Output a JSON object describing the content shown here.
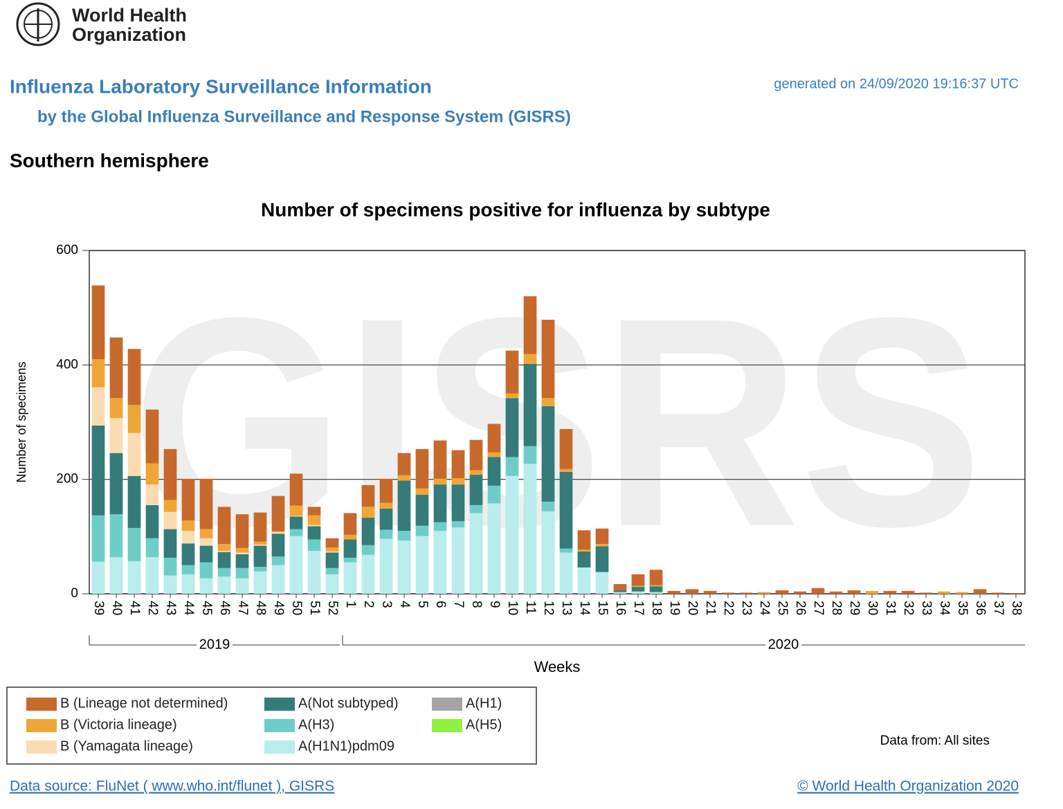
{
  "page": {
    "logo_line1": "World Health",
    "logo_line2": "Organization",
    "heading": "Influenza Laboratory Surveillance Information",
    "subheading": "by the Global Influenza Surveillance and Response System (GISRS)",
    "generated": "generated on 24/09/2020 19:16:37 UTC",
    "region": "Southern hemisphere",
    "data_from": "Data from: All sites",
    "source": "Data source: FluNet ( www.who.int/flunet ), GISRS",
    "copyright": "© World Health Organization 2020"
  },
  "chart_data": {
    "type": "stacked-bar",
    "title": "Number of specimens positive for influenza by subtype",
    "watermark": "GISRS",
    "x_label": "Weeks",
    "y_label": "Number of specimens",
    "categories": [
      "39",
      "40",
      "41",
      "42",
      "43",
      "44",
      "45",
      "46",
      "47",
      "48",
      "49",
      "50",
      "51",
      "52",
      "1",
      "2",
      "3",
      "4",
      "5",
      "6",
      "7",
      "8",
      "9",
      "10",
      "11",
      "12",
      "13",
      "14",
      "15",
      "16",
      "17",
      "18",
      "19",
      "20",
      "21",
      "22",
      "23",
      "24",
      "25",
      "26",
      "27",
      "28",
      "29",
      "30",
      "31",
      "32",
      "33",
      "34",
      "35",
      "36",
      "37",
      "38"
    ],
    "years": [
      "2019",
      "2020"
    ],
    "ylim": [
      0,
      600
    ],
    "yticks": [
      0,
      200,
      400,
      600
    ],
    "grid": true,
    "series": [
      {
        "name": "A(H1N1)pdm09",
        "color": "#b8eced",
        "values": [
          56,
          64,
          57,
          64,
          32,
          34,
          27,
          30,
          27,
          39,
          50,
          101,
          75,
          34,
          55,
          68,
          96,
          93,
          101,
          110,
          116,
          141,
          158,
          206,
          227,
          144,
          72,
          46,
          38,
          3,
          4,
          3,
          0,
          0,
          0,
          0,
          0,
          0,
          0,
          0,
          0,
          0,
          0,
          0,
          0,
          0,
          0,
          0,
          0,
          0,
          0,
          0
        ]
      },
      {
        "name": "A(H3)",
        "color": "#6fcdc9",
        "values": [
          81,
          75,
          58,
          33,
          31,
          16,
          28,
          15,
          18,
          8,
          15,
          12,
          20,
          11,
          8,
          17,
          16,
          17,
          18,
          15,
          11,
          14,
          31,
          33,
          31,
          17,
          7,
          0,
          0,
          0,
          0,
          0,
          0,
          0,
          0,
          0,
          0,
          0,
          0,
          0,
          0,
          0,
          0,
          0,
          0,
          0,
          0,
          0,
          0,
          0,
          0,
          0
        ]
      },
      {
        "name": "A(Not subtyped)",
        "color": "#347b7a",
        "values": [
          157,
          107,
          91,
          58,
          50,
          38,
          29,
          28,
          24,
          37,
          40,
          22,
          23,
          27,
          32,
          48,
          37,
          88,
          54,
          66,
          64,
          53,
          50,
          103,
          144,
          167,
          134,
          28,
          45,
          3,
          8,
          10,
          0,
          0,
          0,
          0,
          0,
          0,
          0,
          0,
          0,
          0,
          0,
          0,
          0,
          0,
          0,
          0,
          0,
          0,
          0,
          0
        ]
      },
      {
        "name": "B (Yamagata lineage)",
        "color": "#fbdcb0",
        "values": [
          67,
          61,
          75,
          36,
          30,
          22,
          13,
          2,
          3,
          2,
          3,
          1,
          2,
          2,
          0,
          0,
          0,
          0,
          0,
          0,
          0,
          0,
          0,
          0,
          0,
          0,
          0,
          0,
          0,
          0,
          0,
          0,
          0,
          0,
          0,
          0,
          0,
          0,
          0,
          0,
          0,
          0,
          0,
          0,
          0,
          0,
          0,
          0,
          0,
          0,
          0,
          0
        ]
      },
      {
        "name": "B (Victoria lineage)",
        "color": "#f0a637",
        "values": [
          49,
          35,
          49,
          37,
          21,
          18,
          16,
          12,
          8,
          5,
          1,
          18,
          17,
          7,
          8,
          19,
          10,
          9,
          11,
          10,
          11,
          8,
          8,
          8,
          17,
          14,
          5,
          3,
          4,
          0,
          2,
          2,
          0,
          0,
          0,
          0,
          0,
          3,
          0,
          0,
          0,
          0,
          0,
          5,
          0,
          0,
          0,
          4,
          3,
          0,
          0,
          0
        ]
      },
      {
        "name": "B (Lineage not determined)",
        "color": "#c8692c",
        "values": [
          129,
          106,
          98,
          94,
          89,
          73,
          88,
          65,
          59,
          51,
          62,
          56,
          15,
          16,
          38,
          38,
          42,
          39,
          69,
          67,
          49,
          53,
          50,
          75,
          101,
          137,
          70,
          34,
          27,
          11,
          20,
          27,
          5,
          8,
          5,
          2,
          2,
          0,
          6,
          4,
          10,
          4,
          6,
          0,
          5,
          5,
          2,
          0,
          0,
          8,
          2,
          1
        ]
      },
      {
        "name": "A(H1)",
        "color": "#a5a5a5",
        "values": [
          0,
          0,
          0,
          0,
          0,
          0,
          0,
          0,
          0,
          0,
          0,
          0,
          0,
          0,
          0,
          0,
          0,
          0,
          0,
          0,
          0,
          0,
          0,
          0,
          0,
          0,
          0,
          0,
          0,
          0,
          0,
          0,
          0,
          0,
          0,
          0,
          0,
          0,
          0,
          0,
          0,
          0,
          0,
          0,
          0,
          0,
          0,
          0,
          0,
          0,
          0,
          0
        ]
      },
      {
        "name": "A(H5)",
        "color": "#8ff23e",
        "values": [
          0,
          0,
          0,
          0,
          0,
          0,
          0,
          0,
          0,
          0,
          0,
          0,
          0,
          0,
          0,
          0,
          0,
          0,
          0,
          0,
          0,
          0,
          0,
          0,
          0,
          0,
          0,
          0,
          0,
          0,
          0,
          0,
          0,
          0,
          0,
          0,
          0,
          0,
          0,
          0,
          0,
          0,
          0,
          0,
          0,
          0,
          0,
          0,
          0,
          0,
          0,
          0
        ]
      }
    ]
  }
}
